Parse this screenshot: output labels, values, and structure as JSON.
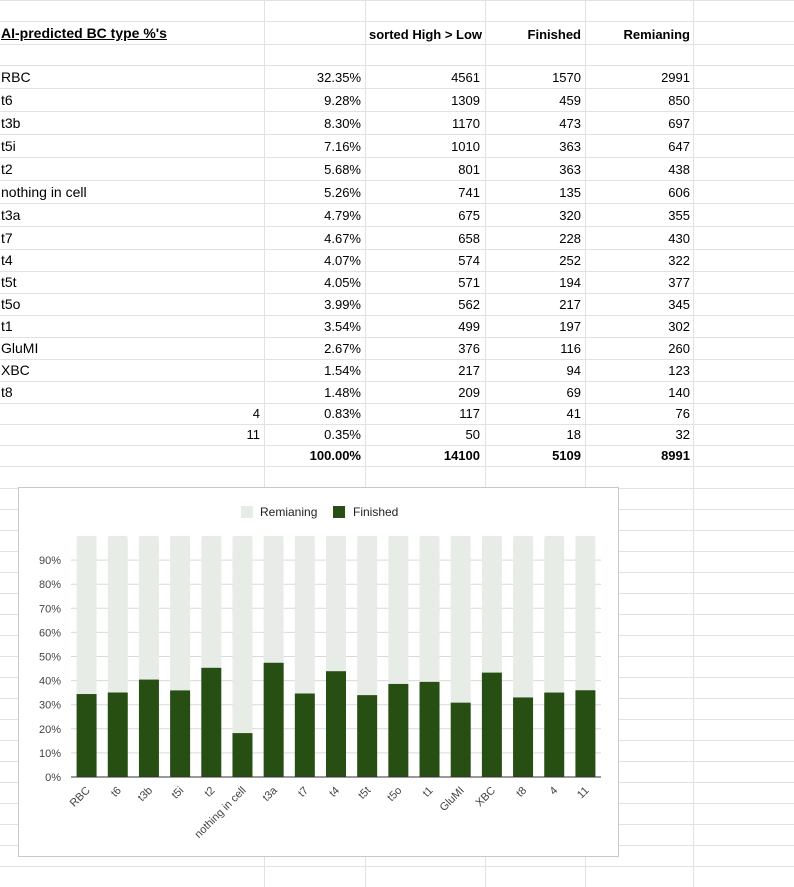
{
  "sheet": {
    "title": "AI-predicted BC type %'s",
    "headers": {
      "sorted": "sorted High > Low",
      "finished": "Finished",
      "remaining": "Remianing"
    },
    "rows": [
      {
        "label": "RBC",
        "left_num": "",
        "pct": "32.35%",
        "sorted": "4561",
        "finished": "1570",
        "remaining": "2991"
      },
      {
        "label": "t6",
        "left_num": "",
        "pct": "9.28%",
        "sorted": "1309",
        "finished": "459",
        "remaining": "850"
      },
      {
        "label": "t3b",
        "left_num": "",
        "pct": "8.30%",
        "sorted": "1170",
        "finished": "473",
        "remaining": "697"
      },
      {
        "label": "t5i",
        "left_num": "",
        "pct": "7.16%",
        "sorted": "1010",
        "finished": "363",
        "remaining": "647"
      },
      {
        "label": "t2",
        "left_num": "",
        "pct": "5.68%",
        "sorted": "801",
        "finished": "363",
        "remaining": "438"
      },
      {
        "label": "nothing in cell",
        "left_num": "",
        "pct": "5.26%",
        "sorted": "741",
        "finished": "135",
        "remaining": "606"
      },
      {
        "label": "t3a",
        "left_num": "",
        "pct": "4.79%",
        "sorted": "675",
        "finished": "320",
        "remaining": "355"
      },
      {
        "label": "t7",
        "left_num": "",
        "pct": "4.67%",
        "sorted": "658",
        "finished": "228",
        "remaining": "430"
      },
      {
        "label": "t4",
        "left_num": "",
        "pct": "4.07%",
        "sorted": "574",
        "finished": "252",
        "remaining": "322"
      },
      {
        "label": "t5t",
        "left_num": "",
        "pct": "4.05%",
        "sorted": "571",
        "finished": "194",
        "remaining": "377"
      },
      {
        "label": "t5o",
        "left_num": "",
        "pct": "3.99%",
        "sorted": "562",
        "finished": "217",
        "remaining": "345"
      },
      {
        "label": "t1",
        "left_num": "",
        "pct": "3.54%",
        "sorted": "499",
        "finished": "197",
        "remaining": "302"
      },
      {
        "label": "GluMI",
        "left_num": "",
        "pct": "2.67%",
        "sorted": "376",
        "finished": "116",
        "remaining": "260"
      },
      {
        "label": "XBC",
        "left_num": "",
        "pct": "1.54%",
        "sorted": "217",
        "finished": "94",
        "remaining": "123"
      },
      {
        "label": "t8",
        "left_num": "",
        "pct": "1.48%",
        "sorted": "209",
        "finished": "69",
        "remaining": "140"
      },
      {
        "label": "",
        "left_num": "4",
        "pct": "0.83%",
        "sorted": "117",
        "finished": "41",
        "remaining": "76"
      },
      {
        "label": "",
        "left_num": "11",
        "pct": "0.35%",
        "sorted": "50",
        "finished": "18",
        "remaining": "32"
      }
    ],
    "totals": {
      "pct": "100.00%",
      "sorted": "14100",
      "finished": "5109",
      "remaining": "8991"
    }
  },
  "chart_data": {
    "type": "bar",
    "stacked": "percent",
    "legend": [
      "Remianing",
      "Finished"
    ],
    "legend_position": "top",
    "categories": [
      "RBC",
      "t6",
      "t3b",
      "t5i",
      "t2",
      "nothing in cell",
      "t3a",
      "t7",
      "t4",
      "t5t",
      "t5o",
      "t1",
      "GluMI",
      "XBC",
      "t8",
      "4",
      "11"
    ],
    "series": [
      {
        "name": "Finished",
        "color": "#274e13",
        "values": [
          1570,
          459,
          473,
          363,
          363,
          135,
          320,
          228,
          252,
          194,
          217,
          197,
          116,
          94,
          69,
          41,
          18
        ]
      },
      {
        "name": "Remianing",
        "color": "#e8ece6",
        "values": [
          2991,
          850,
          697,
          647,
          438,
          606,
          355,
          430,
          322,
          377,
          345,
          302,
          260,
          123,
          140,
          76,
          32
        ]
      }
    ],
    "y_ticks": [
      "0%",
      "10%",
      "20%",
      "30%",
      "40%",
      "50%",
      "60%",
      "70%",
      "80%",
      "90%"
    ],
    "ylim": [
      0,
      1
    ],
    "grid": true
  }
}
